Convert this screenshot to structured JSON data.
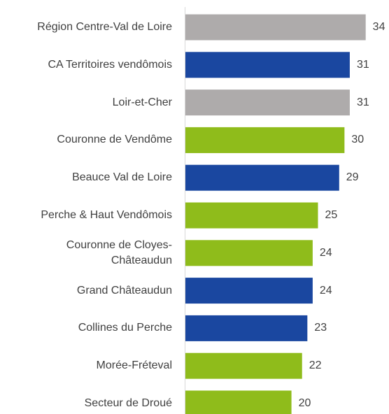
{
  "chart_data": {
    "type": "bar",
    "orientation": "horizontal",
    "categories": [
      "Région Centre-Val de Loire",
      "CA Territoires vendômois",
      "Loir-et-Cher",
      "Couronne de Vendôme",
      "Beauce Val de Loire",
      "Perche & Haut Vendômois",
      "Couronne de Cloyes-\nChâteaudun",
      "Grand Châteaudun",
      "Collines du Perche",
      "Morée-Fréteval",
      "Secteur de Droué"
    ],
    "values": [
      34,
      31,
      31,
      30,
      29,
      25,
      24,
      24,
      23,
      22,
      20
    ],
    "colors": [
      "#aeabab",
      "#1a47a0",
      "#aeabab",
      "#8fbc1b",
      "#1a47a0",
      "#8fbc1b",
      "#8fbc1b",
      "#1a47a0",
      "#1a47a0",
      "#8fbc1b",
      "#8fbc1b"
    ],
    "xlim": [
      0,
      38
    ]
  }
}
